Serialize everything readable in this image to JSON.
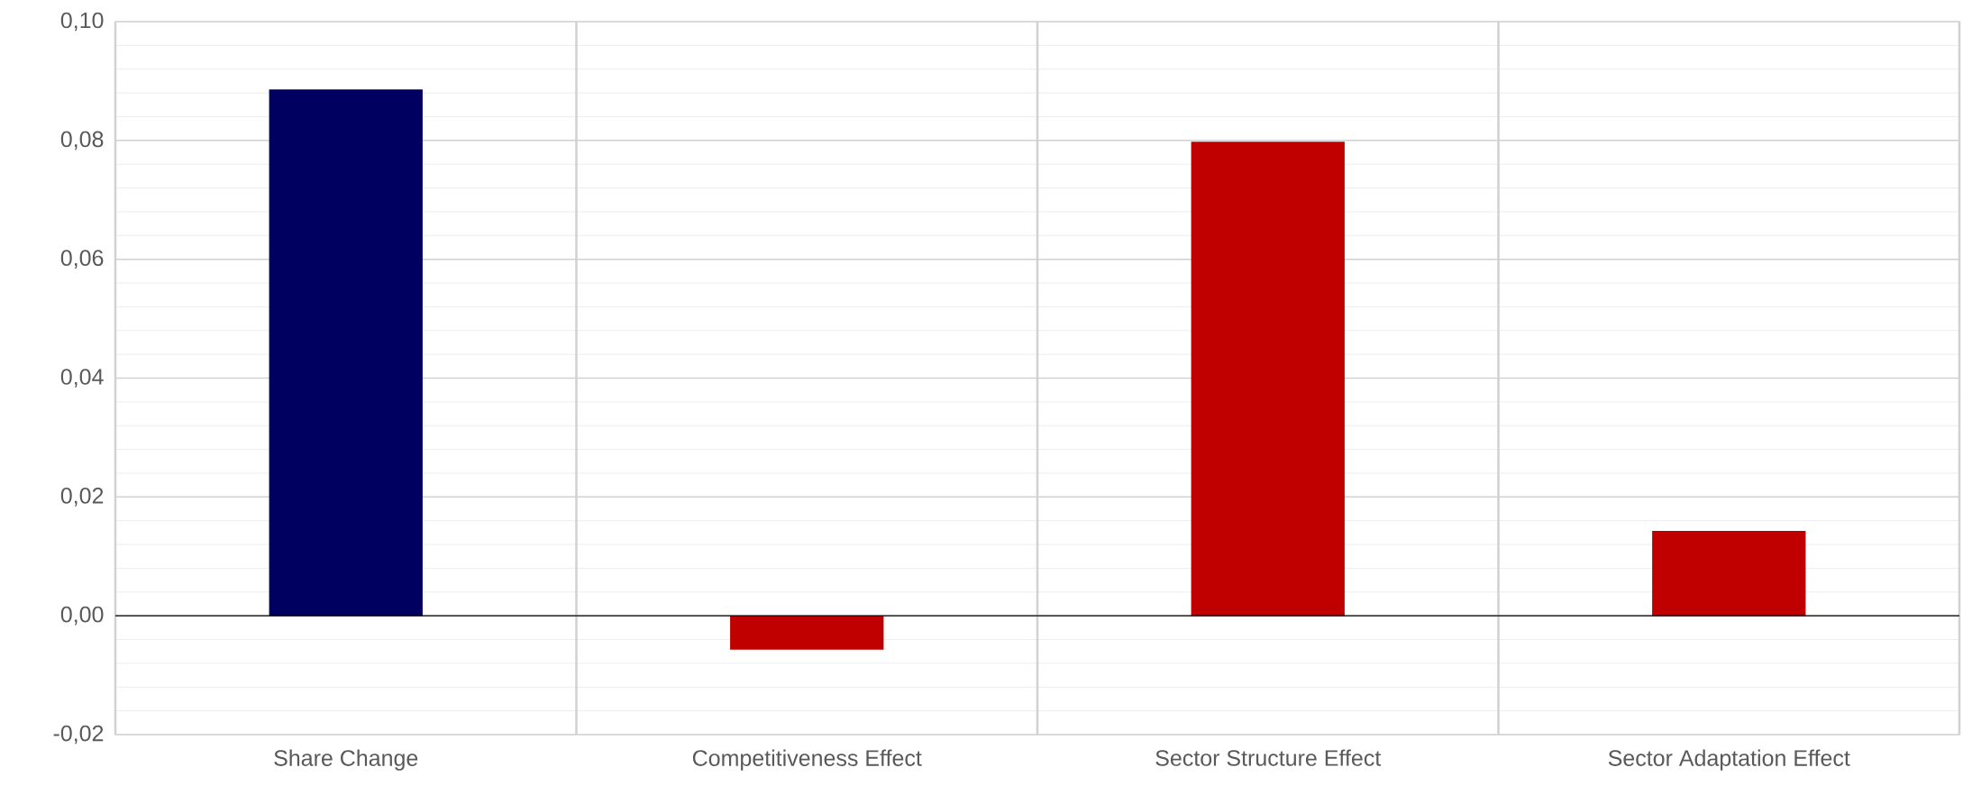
{
  "chart_data": {
    "type": "bar",
    "categories": [
      "Share Change",
      "Competitiveness Effect",
      "Sector Structure Effect",
      "Sector Adaptation Effect"
    ],
    "values": [
      0.0886,
      -0.0057,
      0.0798,
      0.0143
    ],
    "colors": [
      "#000060",
      "#c00000",
      "#c00000",
      "#c00000"
    ],
    "ylim": [
      -0.02,
      0.1
    ],
    "yticks": [
      {
        "value": -0.02,
        "label": "-0,02"
      },
      {
        "value": 0,
        "label": "0,00"
      },
      {
        "value": 0.02,
        "label": "0,02"
      },
      {
        "value": 0.04,
        "label": "0,04"
      },
      {
        "value": 0.06,
        "label": "0,06"
      },
      {
        "value": 0.08,
        "label": "0,08"
      },
      {
        "value": 0.1,
        "label": "0,10"
      }
    ],
    "grid": true
  }
}
